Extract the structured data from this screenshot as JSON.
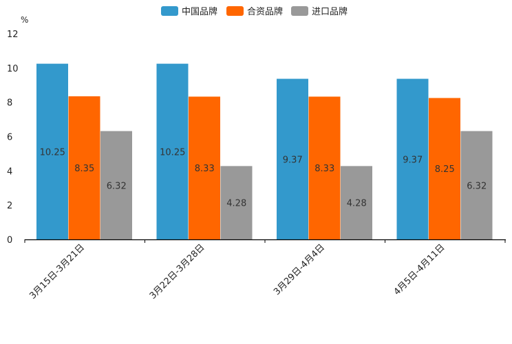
{
  "chart_data": {
    "type": "bar",
    "title": "",
    "xlabel": "",
    "ylabel": "%",
    "ylim": [
      0,
      12
    ],
    "yticks": [
      0,
      2,
      4,
      6,
      8,
      10,
      12
    ],
    "grid": false,
    "legend_position": "top-center",
    "categories": [
      "3月15日-3月21日",
      "3月22日-3月28日",
      "3月29日-4月4日",
      "4月5日-4月11日"
    ],
    "series": [
      {
        "name": "中国品牌",
        "color": "#3399cc",
        "values": [
          10.25,
          10.25,
          9.37,
          9.37
        ]
      },
      {
        "name": "合资品牌",
        "color": "#ff6600",
        "values": [
          8.35,
          8.33,
          8.33,
          8.25
        ]
      },
      {
        "name": "进口品牌",
        "color": "#999999",
        "values": [
          6.32,
          4.28,
          4.28,
          6.32
        ]
      }
    ]
  }
}
